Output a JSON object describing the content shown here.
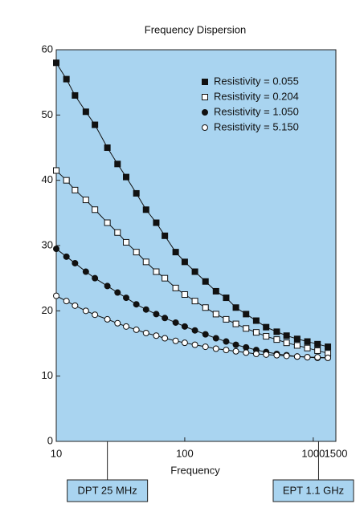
{
  "chart_data": {
    "type": "line",
    "title": "Frequency Dispersion",
    "xlabel": "Frequency",
    "xscale": "log",
    "xlim": [
      10,
      1500
    ],
    "xticks": [
      10,
      100,
      1000,
      1500
    ],
    "ylim": [
      0,
      60
    ],
    "yticks": [
      0,
      10,
      20,
      30,
      40,
      50,
      60
    ],
    "grid": false,
    "background": "#a9d4f0",
    "legend": "upper right",
    "x": [
      10,
      12,
      14,
      17,
      20,
      25,
      30,
      35,
      42,
      50,
      60,
      70,
      85,
      100,
      120,
      145,
      175,
      210,
      250,
      300,
      360,
      430,
      520,
      620,
      750,
      900,
      1080,
      1300
    ],
    "series": [
      {
        "name": "Resistivity = 0.055",
        "color": "#111111",
        "marker": "square-filled",
        "values": [
          58,
          55.5,
          53,
          50.5,
          48.5,
          45,
          42.5,
          40.5,
          38,
          35.5,
          33.5,
          31.5,
          29,
          27.5,
          26,
          24.5,
          23,
          22,
          20.5,
          19.5,
          18.5,
          17.5,
          16.8,
          16.2,
          15.7,
          15.3,
          14.9,
          14.5
        ]
      },
      {
        "name": "Resistivity = 0.204",
        "color": "#111111",
        "marker": "square-open",
        "values": [
          41.5,
          40,
          38.5,
          37,
          35.5,
          33.5,
          32,
          30.5,
          29,
          27.5,
          26,
          25,
          23.5,
          22.5,
          21.5,
          20.5,
          19.5,
          18.7,
          18,
          17.3,
          16.7,
          16.1,
          15.6,
          15.1,
          14.7,
          14.3,
          13.9,
          13.5
        ]
      },
      {
        "name": "Resistivity = 1.050",
        "color": "#111111",
        "marker": "circle-filled",
        "values": [
          29.5,
          28.3,
          27.3,
          26,
          25,
          23.8,
          22.8,
          22,
          21,
          20.2,
          19.5,
          18.9,
          18.2,
          17.6,
          17,
          16.4,
          15.8,
          15.3,
          14.8,
          14.4,
          14,
          13.7,
          13.4,
          13.2,
          13,
          12.9,
          12.8,
          12.8
        ]
      },
      {
        "name": "Resistivity = 5.150",
        "color": "#111111",
        "marker": "circle-open",
        "values": [
          22.3,
          21.5,
          20.8,
          20,
          19.4,
          18.7,
          18.1,
          17.6,
          17.1,
          16.6,
          16.2,
          15.8,
          15.4,
          15.1,
          14.8,
          14.5,
          14.2,
          14,
          13.8,
          13.6,
          13.4,
          13.3,
          13.2,
          13.1,
          13,
          12.9,
          12.9,
          12.8
        ]
      }
    ],
    "annotations": [
      {
        "text": "DPT 25 MHz",
        "x": 25
      },
      {
        "text": "EPT 1.1 GHz",
        "x": 1100
      }
    ]
  }
}
